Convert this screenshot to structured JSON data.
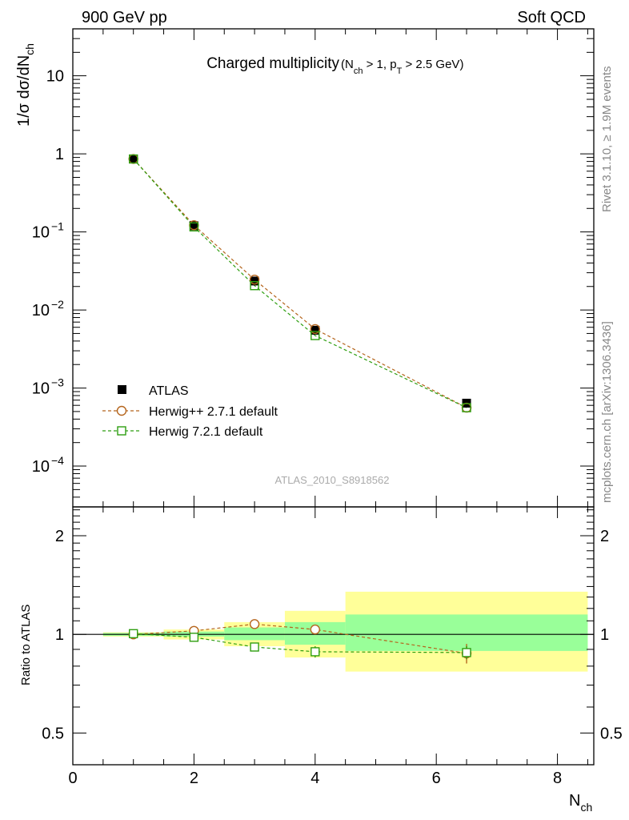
{
  "header": {
    "left": "900 GeV pp",
    "right": "Soft QCD"
  },
  "side": {
    "rivet": "Rivet 3.1.10, ≥ 1.9M events",
    "mcplots": "mcplots.cern.ch [arXiv:1306.3436]"
  },
  "colors": {
    "atlas": "#000000",
    "herwigpp": "#b5651d",
    "herwig7": "#2e9e10",
    "band_inner": "#99ff99",
    "band_outer": "#ffff99",
    "watermark": "#aaaaaa"
  },
  "chart_data": [
    {
      "type": "line",
      "title": "Charged multiplicity",
      "title_sub": "(N_ch > 1, p_T > 2.5 GeV)",
      "ylabel": "1/σ dσ/dN_ch",
      "yscale": "log",
      "ylim": [
        3e-05,
        40
      ],
      "xlim": [
        0,
        8.6
      ],
      "y_ticks": [
        {
          "v": 10,
          "label": "10"
        },
        {
          "v": 1,
          "label": "1"
        },
        {
          "v": 0.1,
          "label": "10",
          "exp": "−1"
        },
        {
          "v": 0.01,
          "label": "10",
          "exp": "−2"
        },
        {
          "v": 0.001,
          "label": "10",
          "exp": "−3"
        },
        {
          "v": 0.0001,
          "label": "10",
          "exp": "−4"
        }
      ],
      "watermark": "ATLAS_2010_S8918562",
      "legend_position": "bottom-left",
      "series": [
        {
          "name": "ATLAS",
          "marker": "filled-square",
          "x": [
            1,
            2,
            3,
            4,
            6.5
          ],
          "y": [
            0.86,
            0.12,
            0.0235,
            0.0055,
            0.00064
          ]
        },
        {
          "name": "Herwig++ 2.7.1 default",
          "marker": "open-circle",
          "linestyle": "dashed",
          "x": [
            1,
            2,
            3,
            4,
            6.5
          ],
          "y": [
            0.86,
            0.122,
            0.0245,
            0.0057,
            0.00056
          ]
        },
        {
          "name": "Herwig 7.2.1 default",
          "marker": "open-square",
          "linestyle": "dashed",
          "x": [
            1,
            2,
            3,
            4,
            6.5
          ],
          "y": [
            0.86,
            0.116,
            0.0205,
            0.0047,
            0.00056
          ]
        }
      ]
    },
    {
      "type": "line",
      "ylabel": "Ratio to ATLAS",
      "xlabel": "N_ch",
      "yscale": "log",
      "ylim": [
        0.4,
        2.45
      ],
      "xlim": [
        0,
        8.6
      ],
      "y_ticks": [
        {
          "v": 2,
          "label": "2"
        },
        {
          "v": 1,
          "label": "1"
        },
        {
          "v": 0.5,
          "label": "0.5"
        }
      ],
      "x_ticks": [
        {
          "v": 0,
          "label": "0"
        },
        {
          "v": 2,
          "label": "2"
        },
        {
          "v": 4,
          "label": "4"
        },
        {
          "v": 6,
          "label": "6"
        },
        {
          "v": 8,
          "label": "8"
        }
      ],
      "bands": [
        {
          "x0": 0.5,
          "x1": 1.5,
          "inner": [
            0.99,
            1.01
          ],
          "outer": [
            0.985,
            1.015
          ]
        },
        {
          "x0": 1.5,
          "x1": 2.5,
          "inner": [
            0.985,
            1.02
          ],
          "outer": [
            0.965,
            1.035
          ]
        },
        {
          "x0": 2.5,
          "x1": 3.5,
          "inner": [
            0.96,
            1.05
          ],
          "outer": [
            0.92,
            1.09
          ]
        },
        {
          "x0": 3.5,
          "x1": 4.5,
          "inner": [
            0.93,
            1.09
          ],
          "outer": [
            0.85,
            1.18
          ]
        },
        {
          "x0": 4.5,
          "x1": 8.5,
          "inner": [
            0.89,
            1.15
          ],
          "outer": [
            0.77,
            1.35
          ]
        }
      ],
      "series": [
        {
          "name": "Herwig++ 2.7.1 default",
          "marker": "open-circle",
          "x": [
            1,
            2,
            3,
            4,
            6.5
          ],
          "y": [
            1.0,
            1.025,
            1.075,
            1.035,
            0.875
          ],
          "err": [
            0.005,
            0.01,
            0.015,
            0.03,
            0.06
          ]
        },
        {
          "name": "Herwig 7.2.1 default",
          "marker": "open-square",
          "x": [
            1,
            2,
            3,
            4,
            6.5
          ],
          "y": [
            1.005,
            0.98,
            0.915,
            0.885,
            0.88
          ],
          "err": [
            0.005,
            0.01,
            0.015,
            0.035,
            0.04
          ]
        }
      ]
    }
  ]
}
